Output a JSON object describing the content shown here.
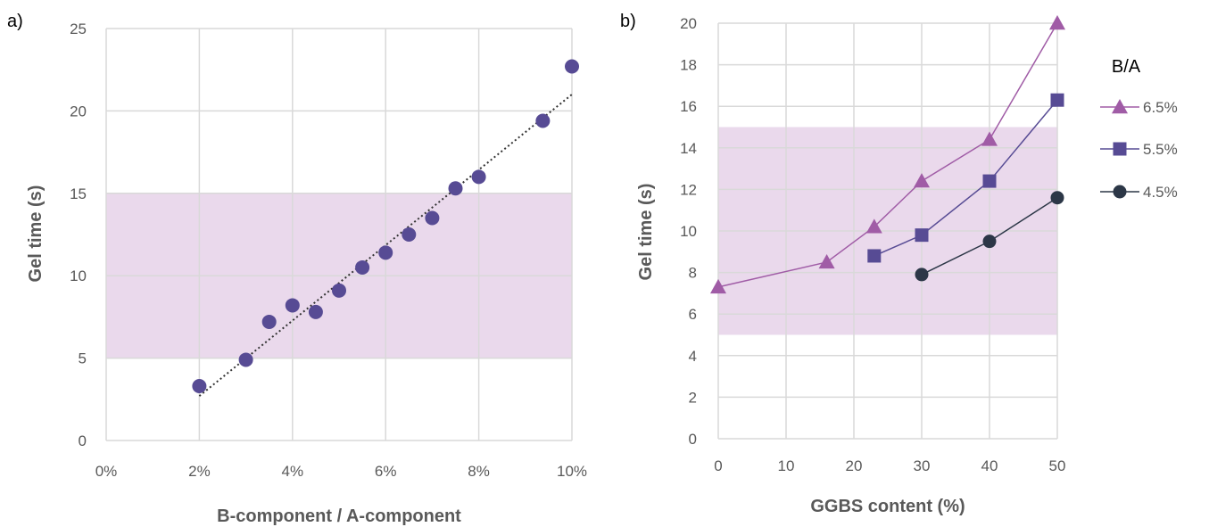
{
  "chart_data": [
    {
      "panel_label": "a)",
      "type": "scatter",
      "xlabel": "B-component / A-component",
      "ylabel": "Gel time (s)",
      "xlim": [
        0,
        10
      ],
      "ylim": [
        0,
        25
      ],
      "x_tick_labels": [
        "0%",
        "2%",
        "4%",
        "6%",
        "8%",
        "10%"
      ],
      "y_tick_labels": [
        "0",
        "5",
        "10",
        "15",
        "20",
        "25"
      ],
      "grid": true,
      "shaded_band": {
        "y_from": 5,
        "y_to": 15,
        "color": "#ead9ec"
      },
      "trendline": {
        "type": "linear",
        "style": "dotted",
        "color": "#333333",
        "from": [
          2,
          2.7
        ],
        "to": [
          10,
          21.0
        ]
      },
      "marker_color": "#574b94",
      "x": [
        2,
        3,
        3.5,
        4,
        4.5,
        5,
        5.5,
        6,
        6.5,
        7,
        7.5,
        8,
        9.375,
        10
      ],
      "y": [
        3.3,
        4.9,
        7.2,
        8.2,
        7.8,
        9.1,
        10.5,
        11.4,
        12.5,
        13.5,
        15.3,
        16.0,
        19.4,
        22.7
      ]
    },
    {
      "panel_label": "b)",
      "type": "line",
      "xlabel": "GGBS content (%)",
      "ylabel": "Gel time (s)",
      "xlim": [
        0,
        50
      ],
      "ylim": [
        0,
        20
      ],
      "x_ticks": [
        0,
        10,
        20,
        30,
        40,
        50
      ],
      "x_tick_labels": [
        "0",
        "10",
        "20",
        "30",
        "40",
        "50"
      ],
      "y_tick_labels": [
        "0",
        "2",
        "4",
        "6",
        "8",
        "10",
        "12",
        "14",
        "16",
        "18",
        "20"
      ],
      "grid": true,
      "shaded_band": {
        "y_from": 5,
        "y_to": 15,
        "color": "#ead9ec"
      },
      "legend_title": "B/A",
      "legend_position": "right",
      "series": [
        {
          "name": "6.5%",
          "marker": "triangle",
          "color": "#a05ca6",
          "x": [
            0,
            16,
            23,
            30,
            40,
            50
          ],
          "y": [
            7.3,
            8.5,
            10.2,
            12.4,
            14.4,
            20.0
          ]
        },
        {
          "name": "5.5%",
          "marker": "square",
          "color": "#574b94",
          "x": [
            23,
            30,
            40,
            50
          ],
          "y": [
            8.8,
            9.8,
            12.4,
            16.3
          ]
        },
        {
          "name": "4.5%",
          "marker": "circle",
          "color": "#2c3747",
          "x": [
            30,
            40,
            50
          ],
          "y": [
            7.9,
            9.5,
            11.6
          ]
        }
      ]
    }
  ]
}
